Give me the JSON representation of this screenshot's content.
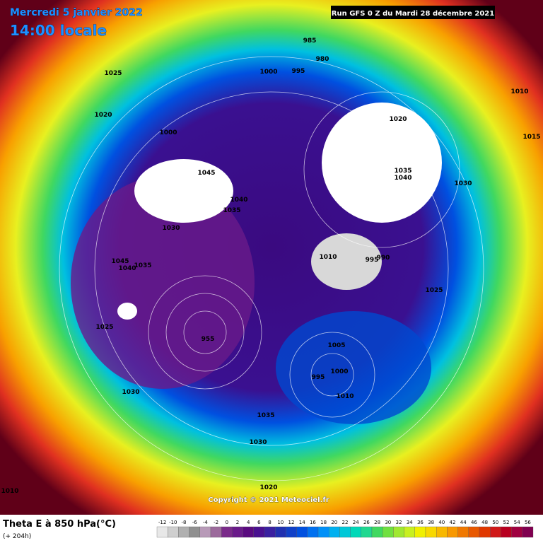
{
  "header": {
    "date": "Mercredi 5 janvier 2022",
    "time": "14:00 locale",
    "run": "Run GFS 0 Z du Mardi 28 décembre 2021"
  },
  "copyright": "Copyright © 2021 Meteociel.fr",
  "legend": {
    "title": "Theta E à 850 hPa(°C)",
    "subtitle": "(+ 204h)",
    "scale": {
      "values": [
        -12,
        -10,
        -8,
        -6,
        -4,
        -2,
        0,
        2,
        4,
        6,
        8,
        10,
        12,
        14,
        16,
        18,
        20,
        22,
        24,
        26,
        28,
        30,
        32,
        34,
        36,
        38,
        40,
        42,
        44,
        46,
        48,
        50,
        52,
        54,
        56
      ],
      "colors": [
        "#e8e8e8",
        "#cfcfcf",
        "#b0b0b0",
        "#909090",
        "#b89ab8",
        "#9c6a9c",
        "#7a2a8a",
        "#6a1a8a",
        "#5a0a80",
        "#4a1090",
        "#3a20a0",
        "#2030b0",
        "#1040c8",
        "#0050e0",
        "#0070f0",
        "#0090f8",
        "#00b0f0",
        "#00c8d8",
        "#00d8b8",
        "#20d890",
        "#40d860",
        "#70e040",
        "#a0e830",
        "#c8f020",
        "#f0f000",
        "#f8d800",
        "#f8b800",
        "#f89800",
        "#f07800",
        "#e85800",
        "#e03800",
        "#d01818",
        "#b80020",
        "#a00040",
        "#800050"
      ]
    }
  },
  "map_labels": [
    "1025",
    "1020",
    "1000",
    "1045",
    "1040",
    "1035",
    "1030",
    "1045",
    "1040",
    "1035",
    "1025",
    "955",
    "1030",
    "1035",
    "1030",
    "1020",
    "1000",
    "995",
    "1005",
    "1010",
    "1035",
    "1040",
    "1020",
    "1030",
    "1025",
    "990",
    "1010",
    "995",
    "985",
    "980",
    "995",
    "1000",
    "1015",
    "1010",
    "1010"
  ]
}
